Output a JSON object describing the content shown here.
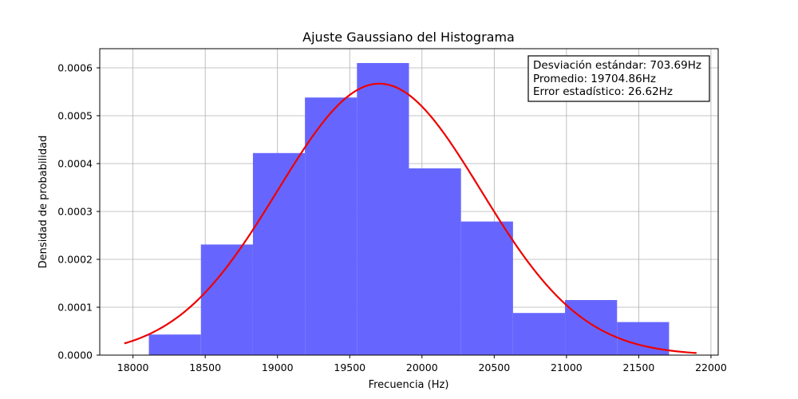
{
  "chart_data": {
    "type": "bar",
    "title": "Ajuste Gaussiano del Histograma",
    "xlabel": "Frecuencia (Hz)",
    "ylabel": "Densidad de probabilidad",
    "xlim": [
      17770,
      22050
    ],
    "ylim": [
      0,
      0.00064
    ],
    "xticks": [
      18000,
      18500,
      19000,
      19500,
      20000,
      20500,
      21000,
      21500,
      22000
    ],
    "xtick_labels": [
      "18000",
      "18500",
      "19000",
      "19500",
      "20000",
      "20500",
      "21000",
      "21500",
      "22000"
    ],
    "yticks": [
      0,
      0.0001,
      0.0002,
      0.0003,
      0.0004,
      0.0005,
      0.0006
    ],
    "ytick_labels": [
      "0.0000",
      "0.0001",
      "0.0002",
      "0.0003",
      "0.0004",
      "0.0005",
      "0.0006"
    ],
    "grid": true,
    "histogram": {
      "color": "#6666ff",
      "bins": [
        {
          "x0": 18110,
          "x1": 18470,
          "density": 4.3e-05
        },
        {
          "x0": 18470,
          "x1": 18830,
          "density": 0.000231
        },
        {
          "x0": 18830,
          "x1": 19190,
          "density": 0.000422
        },
        {
          "x0": 19190,
          "x1": 19550,
          "density": 0.000538
        },
        {
          "x0": 19550,
          "x1": 19910,
          "density": 0.00061
        },
        {
          "x0": 19910,
          "x1": 20270,
          "density": 0.00039
        },
        {
          "x0": 20270,
          "x1": 20630,
          "density": 0.000279
        },
        {
          "x0": 20630,
          "x1": 20990,
          "density": 8.8e-05
        },
        {
          "x0": 20990,
          "x1": 21350,
          "density": 0.000115
        },
        {
          "x0": 21350,
          "x1": 21710,
          "density": 6.9e-05
        }
      ]
    },
    "fit": {
      "color": "#ee0000",
      "mean": 19704.86,
      "std": 703.69,
      "x_range": [
        17940,
        21900
      ]
    },
    "annotation": {
      "lines": [
        "Desviación estándar: 703.69Hz",
        "Promedio: 19704.86Hz",
        "Error estadístico: 26.62Hz"
      ],
      "placement": "top-right"
    }
  }
}
